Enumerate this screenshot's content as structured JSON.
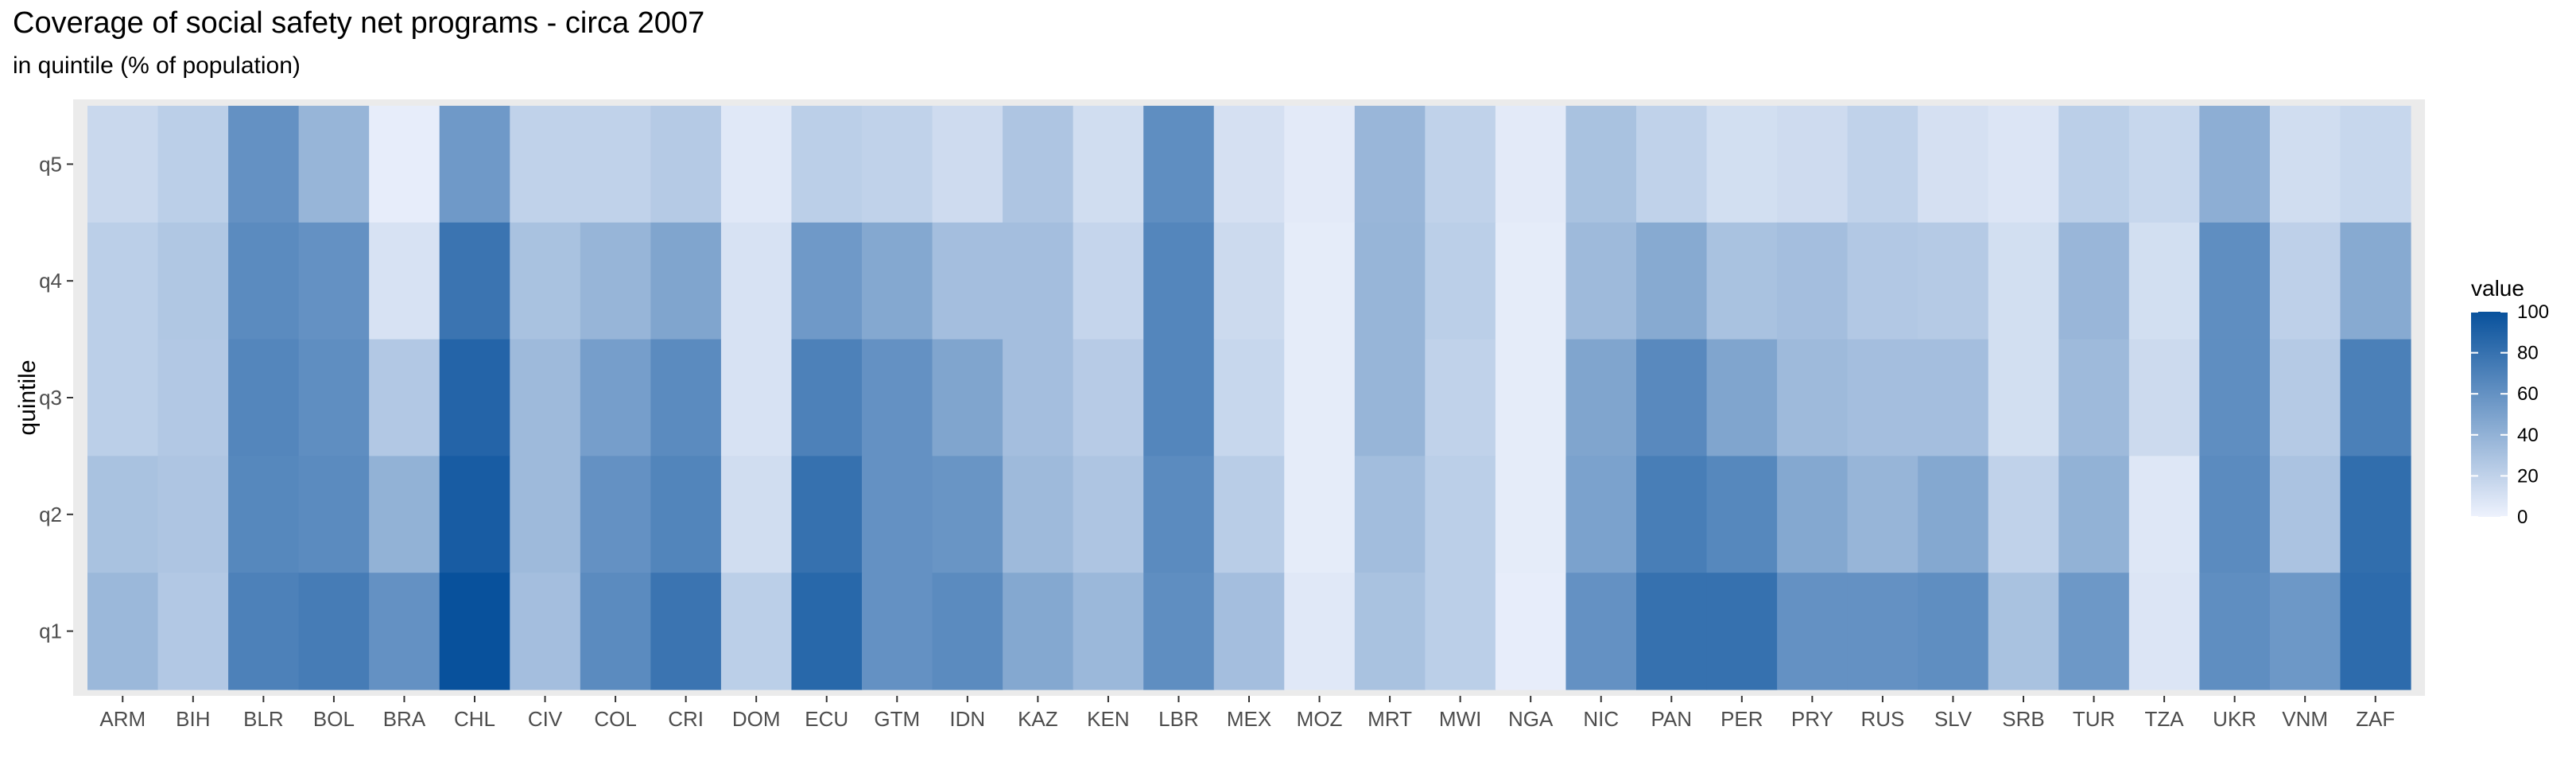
{
  "chart_data": {
    "type": "heatmap",
    "title": "Coverage of social safety net programs - circa 2007",
    "subtitle": "in quintile (% of population)",
    "xlabel": "",
    "ylabel": "quintile",
    "legend_title": "value",
    "legend_placement": "right",
    "color_scale": {
      "low": "#eef2fd",
      "high": "#08519c",
      "range": [
        0,
        100
      ],
      "ticks": [
        0,
        20,
        40,
        60,
        80,
        100
      ]
    },
    "grid": false,
    "categories": [
      "ARM",
      "BIH",
      "BLR",
      "BOL",
      "BRA",
      "CHL",
      "CIV",
      "COL",
      "CRI",
      "DOM",
      "ECU",
      "GTM",
      "IDN",
      "KAZ",
      "KEN",
      "LBR",
      "MEX",
      "MOZ",
      "MRT",
      "MWI",
      "NGA",
      "NIC",
      "PAN",
      "PER",
      "PRY",
      "RUS",
      "SLV",
      "SRB",
      "TUR",
      "TZA",
      "UKR",
      "VNM",
      "ZAF"
    ],
    "quintiles": [
      "q1",
      "q2",
      "q3",
      "q4",
      "q5"
    ],
    "values": {
      "q5": [
        16,
        22,
        60,
        38,
        3,
        55,
        20,
        20,
        25,
        6,
        22,
        20,
        14,
        28,
        13,
        62,
        11,
        5,
        37,
        20,
        5,
        30,
        20,
        12,
        14,
        20,
        11,
        8,
        22,
        17,
        42,
        13,
        17
      ],
      "q4": [
        22,
        27,
        64,
        60,
        10,
        78,
        30,
        38,
        48,
        10,
        55,
        46,
        32,
        32,
        18,
        67,
        15,
        4,
        38,
        22,
        4,
        35,
        45,
        30,
        32,
        26,
        25,
        12,
        37,
        12,
        62,
        21,
        45
      ],
      "q3": [
        22,
        26,
        67,
        62,
        26,
        88,
        35,
        52,
        64,
        10,
        70,
        60,
        48,
        32,
        24,
        67,
        17,
        4,
        38,
        20,
        4,
        48,
        65,
        48,
        35,
        32,
        32,
        12,
        35,
        15,
        62,
        25,
        71
      ],
      "q2": [
        30,
        28,
        66,
        64,
        40,
        93,
        35,
        60,
        68,
        13,
        80,
        60,
        58,
        35,
        28,
        64,
        23,
        4,
        33,
        22,
        4,
        50,
        72,
        66,
        46,
        38,
        46,
        20,
        40,
        7,
        64,
        29,
        82
      ],
      "q1": [
        36,
        26,
        70,
        73,
        60,
        100,
        32,
        64,
        78,
        22,
        86,
        60,
        64,
        46,
        36,
        62,
        32,
        6,
        30,
        22,
        3,
        60,
        80,
        80,
        60,
        60,
        62,
        30,
        56,
        8,
        62,
        56,
        84
      ]
    }
  }
}
